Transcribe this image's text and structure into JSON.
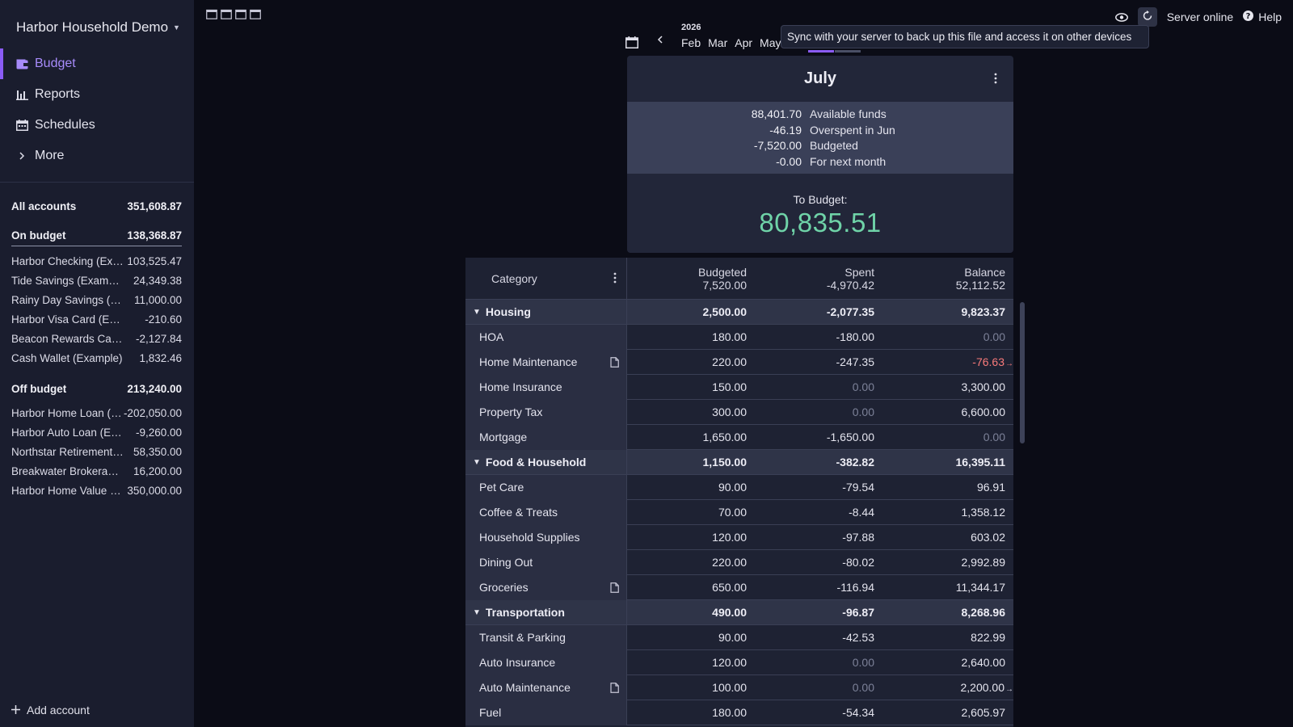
{
  "sidebar": {
    "budget_name": "Harbor Household Demo",
    "nav": [
      {
        "label": "Budget",
        "icon": "wallet-icon",
        "active": true
      },
      {
        "label": "Reports",
        "icon": "bar-chart-icon"
      },
      {
        "label": "Schedules",
        "icon": "calendar-icon"
      },
      {
        "label": "More",
        "icon": "chevron-right-icon"
      }
    ],
    "all_accounts": {
      "name": "All accounts",
      "value": "351,608.87"
    },
    "on_budget": {
      "name": "On budget",
      "value": "138,368.87"
    },
    "on_budget_accounts": [
      {
        "name": "Harbor Checking (Example)",
        "value": "103,525.47"
      },
      {
        "name": "Tide Savings (Example)",
        "value": "24,349.38"
      },
      {
        "name": "Rainy Day Savings (Example)",
        "value": "11,000.00"
      },
      {
        "name": "Harbor Visa Card (Example)",
        "value": "-210.60"
      },
      {
        "name": "Beacon Rewards Card (Example)",
        "value": "-2,127.84"
      },
      {
        "name": "Cash Wallet (Example)",
        "value": "1,832.46"
      }
    ],
    "off_budget": {
      "name": "Off budget",
      "value": "213,240.00"
    },
    "off_budget_accounts": [
      {
        "name": "Harbor Home Loan (Example)",
        "value": "-202,050.00"
      },
      {
        "name": "Harbor Auto Loan (Example)",
        "value": "-9,260.00"
      },
      {
        "name": "Northstar Retirement (Example)",
        "value": "58,350.00"
      },
      {
        "name": "Breakwater Brokerage (Example)",
        "value": "16,200.00"
      },
      {
        "name": "Harbor Home Value (Example)",
        "value": "350,000.00"
      }
    ],
    "add_account": "Add account"
  },
  "topbar": {
    "server_status": "Server online",
    "help": "Help",
    "tooltip": "Sync with your server to back up this file and access it on other devices"
  },
  "months": {
    "year": "2026",
    "visible": [
      "Feb",
      "Mar",
      "Apr",
      "May"
    ]
  },
  "summary": {
    "month": "July",
    "rows": [
      {
        "value": "88,401.70",
        "label": "Available funds"
      },
      {
        "value": "-46.19",
        "label": "Overspent in Jun"
      },
      {
        "value": "-7,520.00",
        "label": "Budgeted"
      },
      {
        "value": "-0.00",
        "label": "For next month"
      }
    ],
    "to_budget_label": "To Budget:",
    "to_budget_value": "80,835.51",
    "to_budget_color": "#6fd3a8"
  },
  "table": {
    "header": {
      "category": "Category",
      "budgeted_label": "Budgeted",
      "budgeted_total": "7,520.00",
      "spent_label": "Spent",
      "spent_total": "-4,970.42",
      "balance_label": "Balance",
      "balance_total": "52,112.52"
    },
    "rows": [
      {
        "type": "group",
        "name": "Housing",
        "budgeted": "2,500.00",
        "spent": "-2,077.35",
        "balance": "9,823.37"
      },
      {
        "type": "item",
        "name": "HOA",
        "budgeted": "180.00",
        "spent": "-180.00",
        "balance": "0.00",
        "balance_muted": true
      },
      {
        "type": "item",
        "name": "Home Maintenance",
        "note": true,
        "budgeted": "220.00",
        "spent": "-247.35",
        "balance": "-76.63",
        "balance_negative": true,
        "carryover": true
      },
      {
        "type": "item",
        "name": "Home Insurance",
        "budgeted": "150.00",
        "spent": "0.00",
        "spent_muted": true,
        "balance": "3,300.00"
      },
      {
        "type": "item",
        "name": "Property Tax",
        "budgeted": "300.00",
        "spent": "0.00",
        "spent_muted": true,
        "balance": "6,600.00"
      },
      {
        "type": "item",
        "name": "Mortgage",
        "budgeted": "1,650.00",
        "spent": "-1,650.00",
        "balance": "0.00",
        "balance_muted": true
      },
      {
        "type": "group",
        "name": "Food & Household",
        "budgeted": "1,150.00",
        "spent": "-382.82",
        "balance": "16,395.11"
      },
      {
        "type": "item",
        "name": "Pet Care",
        "budgeted": "90.00",
        "spent": "-79.54",
        "balance": "96.91"
      },
      {
        "type": "item",
        "name": "Coffee & Treats",
        "budgeted": "70.00",
        "spent": "-8.44",
        "balance": "1,358.12"
      },
      {
        "type": "item",
        "name": "Household Supplies",
        "budgeted": "120.00",
        "spent": "-97.88",
        "balance": "603.02"
      },
      {
        "type": "item",
        "name": "Dining Out",
        "budgeted": "220.00",
        "spent": "-80.02",
        "balance": "2,992.89"
      },
      {
        "type": "item",
        "name": "Groceries",
        "note": true,
        "budgeted": "650.00",
        "spent": "-116.94",
        "balance": "11,344.17"
      },
      {
        "type": "group",
        "name": "Transportation",
        "budgeted": "490.00",
        "spent": "-96.87",
        "balance": "8,268.96"
      },
      {
        "type": "item",
        "name": "Transit & Parking",
        "budgeted": "90.00",
        "spent": "-42.53",
        "balance": "822.99"
      },
      {
        "type": "item",
        "name": "Auto Insurance",
        "budgeted": "120.00",
        "spent": "0.00",
        "spent_muted": true,
        "balance": "2,640.00"
      },
      {
        "type": "item",
        "name": "Auto Maintenance",
        "note": true,
        "budgeted": "100.00",
        "spent": "0.00",
        "spent_muted": true,
        "balance": "2,200.00",
        "carryover_white": true
      },
      {
        "type": "item",
        "name": "Fuel",
        "budgeted": "180.00",
        "spent": "-54.34",
        "balance": "2,605.97"
      }
    ]
  }
}
